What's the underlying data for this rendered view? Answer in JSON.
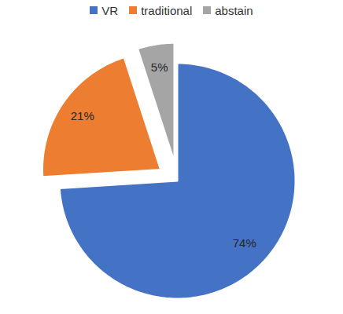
{
  "chart_data": {
    "type": "pie",
    "categories": [
      "VR",
      "traditional",
      "abstain"
    ],
    "values": [
      74,
      21,
      5
    ],
    "value_labels": [
      "74%",
      "21%",
      "5%"
    ],
    "colors": [
      "#4472c4",
      "#ed7d31",
      "#a5a5a5"
    ],
    "data_labels": true,
    "legend": "top"
  }
}
